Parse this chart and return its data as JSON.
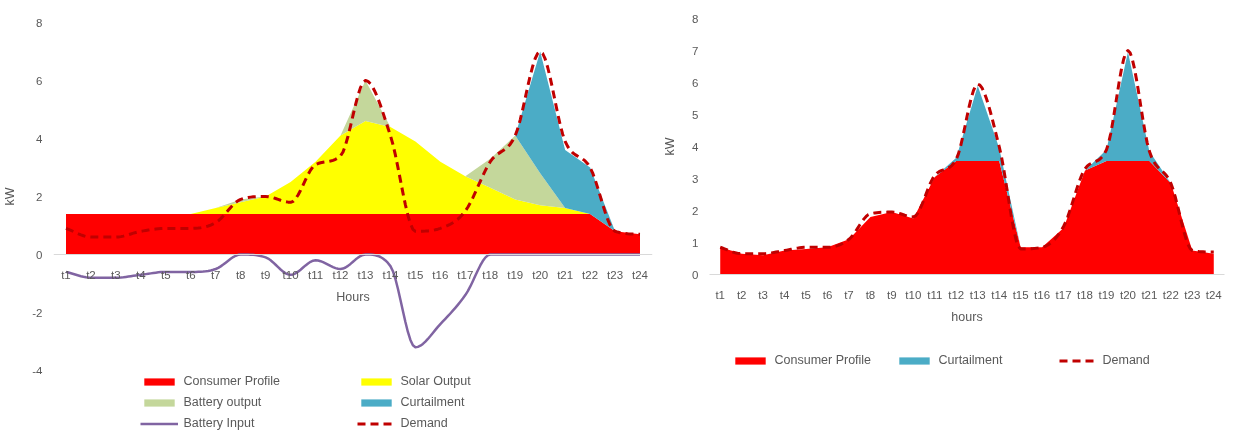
{
  "chart_data": [
    {
      "type": "area",
      "stacked": true,
      "xlabel": "Hours",
      "ylabel": "kW",
      "grid": false,
      "legend": "bottom",
      "categories": [
        "t1",
        "t2",
        "t3",
        "t4",
        "t5",
        "t6",
        "t7",
        "t8",
        "t9",
        "t10",
        "t11",
        "t12",
        "t13",
        "t14",
        "t15",
        "t16",
        "t17",
        "t18",
        "t19",
        "t20",
        "t21",
        "t22",
        "t23",
        "t24"
      ],
      "ylim": [
        -4,
        8
      ],
      "yticks": [
        -4,
        -2,
        0,
        2,
        4,
        6,
        8
      ],
      "series": [
        {
          "name": "Consumer Profile",
          "color": "#ff0000",
          "values": [
            1.4,
            1.4,
            1.4,
            1.4,
            1.4,
            1.4,
            1.4,
            1.4,
            1.4,
            1.4,
            1.4,
            1.4,
            1.4,
            1.4,
            1.4,
            1.4,
            1.4,
            1.4,
            1.4,
            1.4,
            1.4,
            1.4,
            0.8,
            0.7
          ]
        },
        {
          "name": "Solar Output",
          "color": "#ffff00",
          "values": [
            0,
            0,
            0,
            0,
            0,
            0,
            0.2,
            0.4,
            0.6,
            1.1,
            1.8,
            2.7,
            3.2,
            3.0,
            2.5,
            1.8,
            1.3,
            0.9,
            0.5,
            0.3,
            0.2,
            0,
            0,
            0
          ]
        },
        {
          "name": "Battery output",
          "color": "#c4d79b",
          "values": [
            0,
            0,
            0,
            0,
            0,
            0,
            0,
            0.1,
            0,
            0,
            0,
            0,
            1.4,
            0,
            0,
            0,
            0,
            1.0,
            2.2,
            1.1,
            0,
            0,
            0,
            0
          ]
        },
        {
          "name": "Curtailment",
          "color": "#4bacc6",
          "values": [
            0,
            0,
            0,
            0,
            0,
            0,
            0,
            0,
            0,
            0,
            0,
            0,
            0,
            0,
            0,
            0,
            0,
            0,
            0,
            4.2,
            2.0,
            1.6,
            0,
            0
          ]
        },
        {
          "name": "Battery Input",
          "color": "#8064a2",
          "type": "line",
          "line_style": "solid",
          "values": [
            -0.6,
            -0.8,
            -0.8,
            -0.7,
            -0.6,
            -0.6,
            -0.5,
            0,
            -0.1,
            -0.7,
            -0.2,
            -0.5,
            0,
            -0.4,
            -3.2,
            -2.4,
            -1.4,
            0,
            0,
            0,
            0,
            0,
            0,
            0
          ]
        },
        {
          "name": "Demand",
          "color": "#c00000",
          "type": "line",
          "line_style": "dashed",
          "values": [
            0.9,
            0.6,
            0.6,
            0.8,
            0.9,
            0.9,
            1.1,
            1.9,
            2.0,
            1.8,
            3.1,
            3.4,
            6.0,
            4.1,
            0.8,
            0.9,
            1.5,
            3.2,
            4.1,
            7.0,
            3.9,
            3.0,
            0.8,
            0.7
          ]
        }
      ]
    },
    {
      "type": "area",
      "stacked": true,
      "xlabel": "hours",
      "ylabel": "kW",
      "grid": false,
      "legend": "bottom",
      "categories": [
        "t1",
        "t2",
        "t3",
        "t4",
        "t5",
        "t6",
        "t7",
        "t8",
        "t9",
        "t10",
        "t11",
        "t12",
        "t13",
        "t14",
        "t15",
        "t16",
        "t17",
        "t18",
        "t19",
        "t20",
        "t21",
        "t22",
        "t23",
        "t24"
      ],
      "ylim": [
        0,
        8
      ],
      "yticks": [
        0,
        1,
        2,
        3,
        4,
        5,
        6,
        7,
        8
      ],
      "series": [
        {
          "name": "Consumer Profile",
          "color": "#ff0000",
          "values": [
            0.85,
            0.65,
            0.6,
            0.75,
            0.8,
            0.85,
            1.1,
            1.8,
            1.95,
            1.75,
            3.05,
            3.55,
            3.55,
            3.55,
            0.85,
            0.85,
            1.45,
            3.25,
            3.55,
            3.55,
            3.55,
            2.85,
            0.75,
            0.65
          ]
        },
        {
          "name": "Curtailment",
          "color": "#4bacc6",
          "values": [
            0,
            0,
            0,
            0,
            0,
            0,
            0,
            0,
            0,
            0,
            0,
            0.1,
            2.35,
            0.4,
            0,
            0,
            0,
            0,
            0.35,
            3.4,
            0.3,
            0,
            0,
            0
          ]
        },
        {
          "name": "Demand",
          "color": "#c00000",
          "type": "line",
          "line_style": "dashed",
          "values": [
            0.85,
            0.65,
            0.65,
            0.75,
            0.85,
            0.85,
            1.1,
            1.9,
            1.95,
            1.8,
            3.1,
            3.6,
            5.95,
            4.0,
            0.8,
            0.85,
            1.5,
            3.3,
            3.9,
            7.0,
            3.85,
            2.85,
            0.75,
            0.7
          ]
        }
      ]
    }
  ]
}
